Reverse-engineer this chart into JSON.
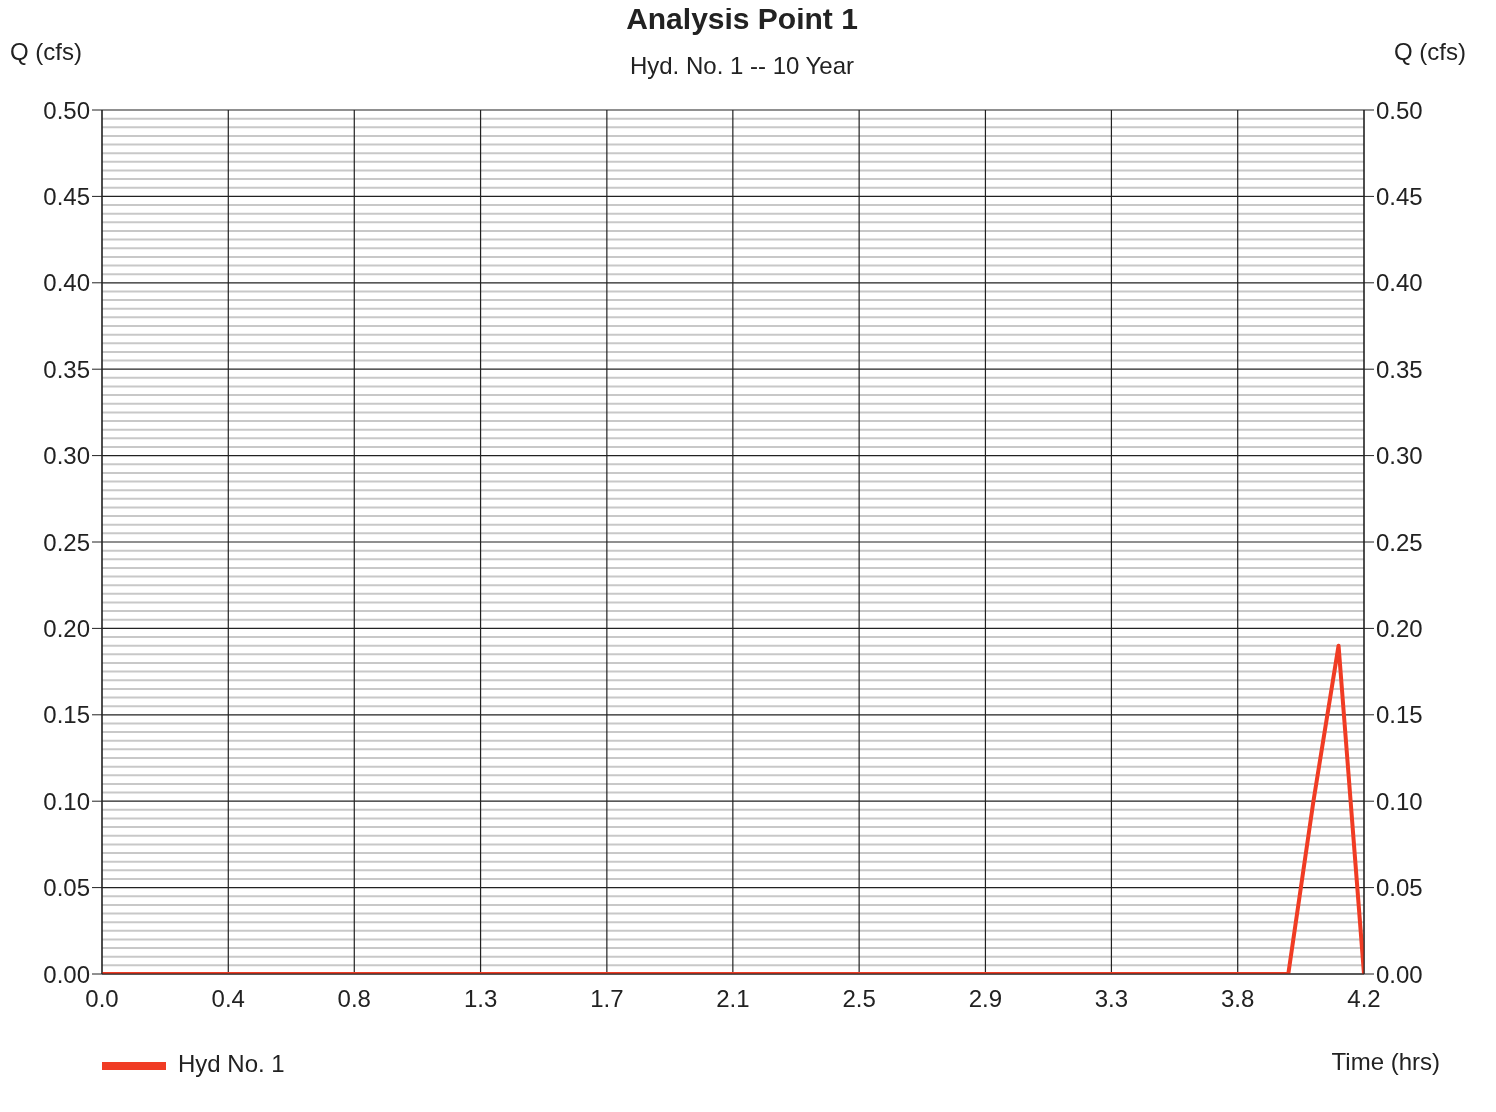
{
  "chart_data": {
    "type": "line",
    "title": "Analysis Point 1",
    "subtitle": "Hyd. No. 1 -- 10 Year",
    "xlabel": "Time (hrs)",
    "ylabel": "Q (cfs)",
    "y2label": "Q (cfs)",
    "x": [
      0,
      3.917,
      4.0,
      4.083,
      4.167
    ],
    "series": [
      {
        "name": "Hyd No. 1",
        "color": "#f03c24",
        "values": [
          0,
          0,
          0.1,
          0.19,
          0
        ]
      }
    ],
    "xlim": [
      0,
      4.167
    ],
    "xticks": [
      {
        "value": 0,
        "label": "0.0"
      },
      {
        "value": 0.417,
        "label": "0.4"
      },
      {
        "value": 0.833,
        "label": "0.8"
      },
      {
        "value": 1.25,
        "label": "1.3"
      },
      {
        "value": 1.667,
        "label": "1.7"
      },
      {
        "value": 2.083,
        "label": "2.1"
      },
      {
        "value": 2.5,
        "label": "2.5"
      },
      {
        "value": 2.917,
        "label": "2.9"
      },
      {
        "value": 3.333,
        "label": "3.3"
      },
      {
        "value": 3.75,
        "label": "3.8"
      },
      {
        "value": 4.167,
        "label": "4.2"
      }
    ],
    "ylim": [
      0,
      0.5
    ],
    "yticks": [
      {
        "value": 0,
        "label": "0.00"
      },
      {
        "value": 0.05,
        "label": "0.05"
      },
      {
        "value": 0.1,
        "label": "0.10"
      },
      {
        "value": 0.15,
        "label": "0.15"
      },
      {
        "value": 0.2,
        "label": "0.20"
      },
      {
        "value": 0.25,
        "label": "0.25"
      },
      {
        "value": 0.3,
        "label": "0.30"
      },
      {
        "value": 0.35,
        "label": "0.35"
      },
      {
        "value": 0.4,
        "label": "0.40"
      },
      {
        "value": 0.45,
        "label": "0.45"
      },
      {
        "value": 0.5,
        "label": "0.50"
      }
    ],
    "y2lim": [
      0,
      0.5
    ],
    "y2ticks": [
      {
        "value": 0,
        "label": "0.00"
      },
      {
        "value": 0.05,
        "label": "0.05"
      },
      {
        "value": 0.1,
        "label": "0.10"
      },
      {
        "value": 0.15,
        "label": "0.15"
      },
      {
        "value": 0.2,
        "label": "0.20"
      },
      {
        "value": 0.25,
        "label": "0.25"
      },
      {
        "value": 0.3,
        "label": "0.30"
      },
      {
        "value": 0.35,
        "label": "0.35"
      },
      {
        "value": 0.4,
        "label": "0.40"
      },
      {
        "value": 0.45,
        "label": "0.45"
      },
      {
        "value": 0.5,
        "label": "0.50"
      }
    ],
    "grid": true,
    "legend": "bottom left",
    "marker": "none",
    "line_style": "solid"
  }
}
